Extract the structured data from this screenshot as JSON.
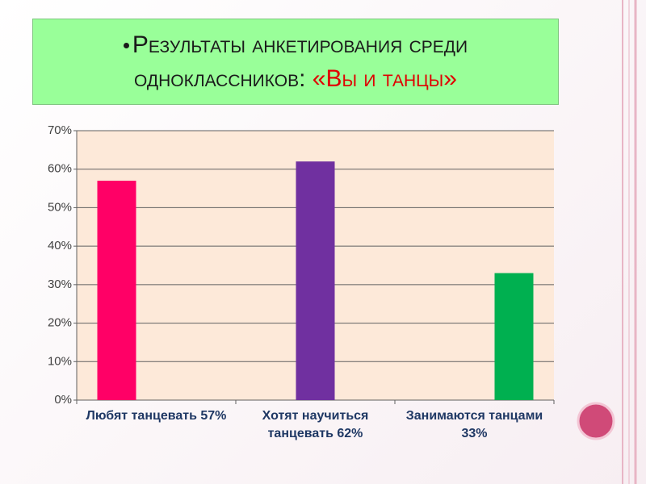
{
  "chart_data": {
    "type": "bar",
    "title": "Результаты анкетирования среди одноклассников:",
    "title_highlight": "«Вы и танцы»",
    "categories": [
      "Любят танцевать 57%",
      "Хотят научиться танцевать 62%",
      "Занимаются танцами 33%"
    ],
    "values": [
      57,
      62,
      33
    ],
    "colors": [
      "#ff0066",
      "#7030a0",
      "#00b050"
    ],
    "ylim": [
      0,
      70
    ],
    "yticks": [
      {
        "value": 0,
        "label": "0%"
      },
      {
        "value": 10,
        "label": "10%"
      },
      {
        "value": 20,
        "label": "20%"
      },
      {
        "value": 30,
        "label": "30%"
      },
      {
        "value": 40,
        "label": "40%"
      },
      {
        "value": 50,
        "label": "50%"
      },
      {
        "value": 60,
        "label": "60%"
      },
      {
        "value": 70,
        "label": "70%"
      }
    ],
    "grid": true
  }
}
